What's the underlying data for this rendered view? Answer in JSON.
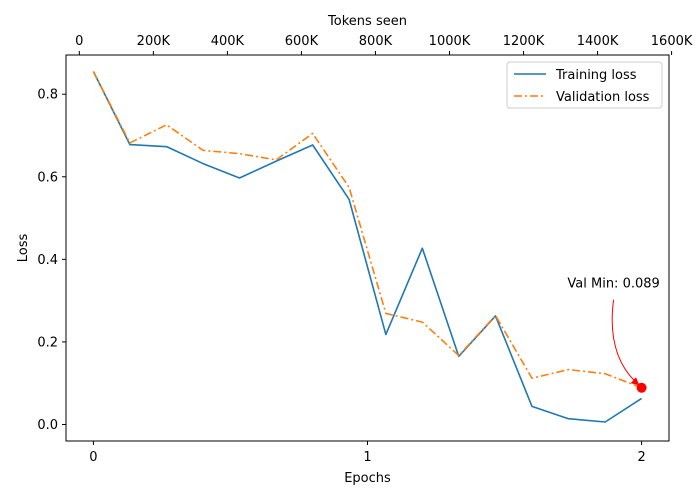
{
  "chart_data": {
    "type": "line",
    "xlabel": "Epochs",
    "ylabel": "Loss",
    "top_xlabel": "Tokens seen",
    "xlim": [
      -0.1,
      2.1
    ],
    "ylim": [
      -0.04,
      0.895
    ],
    "x_ticks": [
      0,
      1,
      2
    ],
    "x_tick_labels": [
      "0",
      "1",
      "2"
    ],
    "y_ticks": [
      0.0,
      0.2,
      0.4,
      0.6,
      0.8
    ],
    "y_tick_labels": [
      "0.0",
      "0.2",
      "0.4",
      "0.6",
      "0.8"
    ],
    "top_x_ticks": [
      0,
      200000,
      400000,
      600000,
      800000,
      1000000,
      1200000,
      1400000,
      1600000
    ],
    "top_x_tick_labels": [
      "0",
      "200K",
      "400K",
      "600K",
      "800K",
      "1000K",
      "1200K",
      "1400K",
      "1600K"
    ],
    "top_xlim": [
      -36000,
      1593000
    ],
    "legend_position": "upper-right",
    "x": [
      0,
      0.133,
      0.267,
      0.4,
      0.533,
      0.667,
      0.8,
      0.933,
      1.067,
      1.2,
      1.333,
      1.467,
      1.6,
      1.733,
      1.867,
      2.0
    ],
    "series": [
      {
        "name": "Training loss",
        "color": "#1f77b4",
        "style": "solid",
        "values": [
          0.855,
          0.678,
          0.673,
          0.632,
          0.597,
          0.638,
          0.677,
          0.545,
          0.218,
          0.427,
          0.165,
          0.263,
          0.044,
          0.014,
          0.006,
          0.063
        ]
      },
      {
        "name": "Validation loss",
        "color": "#ff7f0e",
        "style": "dashdot",
        "values": [
          0.855,
          0.682,
          0.726,
          0.664,
          0.656,
          0.641,
          0.705,
          0.574,
          0.269,
          0.248,
          0.167,
          0.264,
          0.112,
          0.133,
          0.123,
          0.089
        ]
      }
    ],
    "annotation": {
      "text": "Val Min: 0.089",
      "x": 2.0,
      "y": 0.089,
      "marker_color": "#ff0000",
      "arrow_color": "#ff0000"
    }
  }
}
